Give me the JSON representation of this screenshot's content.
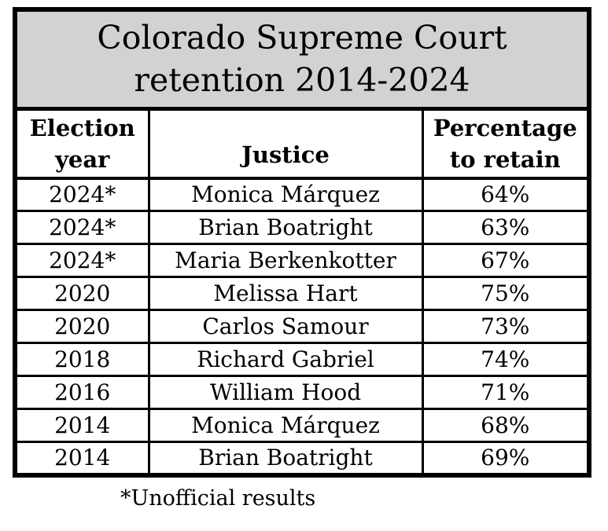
{
  "title": {
    "lines": [
      "Colorado Supreme Court",
      "retention 2014-2024"
    ]
  },
  "columns": [
    "Election year",
    "Justice",
    "Percentage to retain"
  ],
  "footnote": "*Unofficial results",
  "colors": {
    "title_band_background": "#d2d2d2",
    "border": "#000000",
    "text": "#000000",
    "row_background": "#ffffff"
  },
  "chart_data": {
    "type": "table",
    "title": "Colorado Supreme Court retention 2014-2024",
    "columns": [
      "Election year",
      "Justice",
      "Percentage to retain"
    ],
    "rows": [
      {
        "year": "2024*",
        "justice": "Monica Márquez",
        "pct": "64%"
      },
      {
        "year": "2024*",
        "justice": "Brian Boatright",
        "pct": "63%"
      },
      {
        "year": "2024*",
        "justice": "Maria Berkenkotter",
        "pct": "67%"
      },
      {
        "year": "2020",
        "justice": "Melissa Hart",
        "pct": "75%"
      },
      {
        "year": "2020",
        "justice": "Carlos Samour",
        "pct": "73%"
      },
      {
        "year": "2018",
        "justice": "Richard Gabriel",
        "pct": "74%"
      },
      {
        "year": "2016",
        "justice": "William Hood",
        "pct": "71%"
      },
      {
        "year": "2014",
        "justice": "Monica Márquez",
        "pct": "68%"
      },
      {
        "year": "2014",
        "justice": "Brian Boatright",
        "pct": "69%"
      }
    ],
    "footnote": "*Unofficial results"
  }
}
